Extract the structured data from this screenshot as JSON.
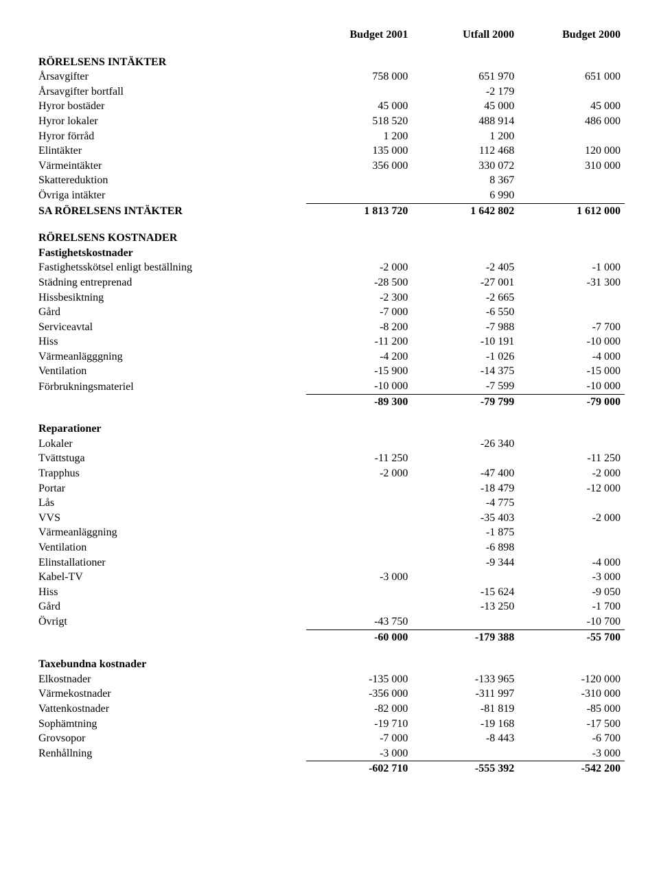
{
  "columns": {
    "col1": "Budget 2001",
    "col2": "Utfall 2000",
    "col3": "Budget 2000"
  },
  "sections": {
    "intakter": {
      "title": "RÖRELSENS INTÄKTER",
      "rows": {
        "arsavgifter": {
          "label": "Årsavgifter",
          "c1": "758 000",
          "c2": "651 970",
          "c3": "651 000"
        },
        "arsavgifter_bort": {
          "label": "Årsavgifter bortfall",
          "c1": "",
          "c2": "-2 179",
          "c3": ""
        },
        "hyror_bost": {
          "label": "Hyror bostäder",
          "c1": "45 000",
          "c2": "45 000",
          "c3": "45 000"
        },
        "hyror_lokaler": {
          "label": "Hyror lokaler",
          "c1": "518 520",
          "c2": "488 914",
          "c3": "486 000"
        },
        "hyror_forrad": {
          "label": "Hyror förråd",
          "c1": "1 200",
          "c2": "1 200",
          "c3": ""
        },
        "elintakter": {
          "label": "Elintäkter",
          "c1": "135 000",
          "c2": "112 468",
          "c3": "120 000"
        },
        "varmeintakter": {
          "label": "Värmeintäkter",
          "c1": "356 000",
          "c2": "330 072",
          "c3": "310 000"
        },
        "skattereduktion": {
          "label": "Skattereduktion",
          "c1": "",
          "c2": "8 367",
          "c3": ""
        },
        "ovriga_intakter": {
          "label": "Övriga intäkter",
          "c1": "",
          "c2": "6 990",
          "c3": ""
        }
      },
      "sum": {
        "label": "SA RÖRELSENS INTÄKTER",
        "c1": "1 813 720",
        "c2": "1 642 802",
        "c3": "1 612 000"
      }
    },
    "kostnader_title": "RÖRELSENS KOSTNADER",
    "fastighet": {
      "title": "Fastighetskostnader",
      "rows": {
        "skotsel": {
          "label": "Fastighetsskötsel enligt beställning",
          "c1": "-2 000",
          "c2": "-2 405",
          "c3": "-1 000"
        },
        "stadning": {
          "label": "Städning entreprenad",
          "c1": "-28 500",
          "c2": "-27 001",
          "c3": "-31 300"
        },
        "hissbesikt": {
          "label": "Hissbesiktning",
          "c1": "-2 300",
          "c2": "-2 665",
          "c3": ""
        },
        "gard": {
          "label": "Gård",
          "c1": "-7 000",
          "c2": "-6 550",
          "c3": ""
        },
        "serviceavtal": {
          "label": "Serviceavtal",
          "c1": "-8 200",
          "c2": "-7 988",
          "c3": "-7 700"
        },
        "hiss": {
          "label": "Hiss",
          "c1": "-11 200",
          "c2": "-10 191",
          "c3": "-10 000"
        },
        "varmeanl": {
          "label": "Värmeanlägggning",
          "c1": "-4 200",
          "c2": "-1 026",
          "c3": "-4 000"
        },
        "ventilation": {
          "label": "Ventilation",
          "c1": "-15 900",
          "c2": "-14 375",
          "c3": "-15 000"
        },
        "forbruk": {
          "label": "Förbrukningsmateriel",
          "c1": "-10 000",
          "c2": "-7 599",
          "c3": "-10 000"
        }
      },
      "sum": {
        "c1": "-89 300",
        "c2": "-79 799",
        "c3": "-79 000"
      }
    },
    "reparationer": {
      "title": "Reparationer",
      "rows": {
        "lokaler": {
          "label": "Lokaler",
          "c1": "",
          "c2": "-26 340",
          "c3": ""
        },
        "tvattstuga": {
          "label": "Tvättstuga",
          "c1": "-11 250",
          "c2": "",
          "c3": "-11 250"
        },
        "trapphus": {
          "label": "Trapphus",
          "c1": "-2 000",
          "c2": "-47 400",
          "c3": "-2 000"
        },
        "portar": {
          "label": "Portar",
          "c1": "",
          "c2": "-18 479",
          "c3": "-12 000"
        },
        "las": {
          "label": "Lås",
          "c1": "",
          "c2": "-4 775",
          "c3": ""
        },
        "vvs": {
          "label": "VVS",
          "c1": "",
          "c2": "-35 403",
          "c3": "-2 000"
        },
        "varmeanl": {
          "label": "Värmeanläggning",
          "c1": "",
          "c2": "-1 875",
          "c3": ""
        },
        "ventilation": {
          "label": "Ventilation",
          "c1": "",
          "c2": "-6 898",
          "c3": ""
        },
        "elinst": {
          "label": "Elinstallationer",
          "c1": "",
          "c2": "-9 344",
          "c3": "-4 000"
        },
        "kabeltv": {
          "label": "Kabel-TV",
          "c1": "-3 000",
          "c2": "",
          "c3": "-3 000"
        },
        "hiss": {
          "label": "Hiss",
          "c1": "",
          "c2": "-15 624",
          "c3": "-9 050"
        },
        "gard": {
          "label": "Gård",
          "c1": "",
          "c2": "-13 250",
          "c3": "-1 700"
        },
        "ovrigt": {
          "label": "Övrigt",
          "c1": "-43 750",
          "c2": "",
          "c3": "-10 700"
        }
      },
      "sum": {
        "c1": "-60 000",
        "c2": "-179 388",
        "c3": "-55 700"
      }
    },
    "taxebundna": {
      "title": "Taxebundna kostnader",
      "rows": {
        "el": {
          "label": "Elkostnader",
          "c1": "-135 000",
          "c2": "-133 965",
          "c3": "-120 000"
        },
        "varme": {
          "label": "Värmekostnader",
          "c1": "-356 000",
          "c2": "-311 997",
          "c3": "-310 000"
        },
        "vatten": {
          "label": "Vattenkostnader",
          "c1": "-82 000",
          "c2": "-81 819",
          "c3": "-85 000"
        },
        "sop": {
          "label": "Sophämtning",
          "c1": "-19 710",
          "c2": "-19 168",
          "c3": "-17 500"
        },
        "grov": {
          "label": "Grovsopor",
          "c1": "-7 000",
          "c2": "-8 443",
          "c3": "-6 700"
        },
        "ren": {
          "label": "Renhållning",
          "c1": "-3 000",
          "c2": "",
          "c3": "-3 000"
        }
      },
      "sum": {
        "c1": "-602 710",
        "c2": "-555 392",
        "c3": "-542 200"
      }
    }
  }
}
